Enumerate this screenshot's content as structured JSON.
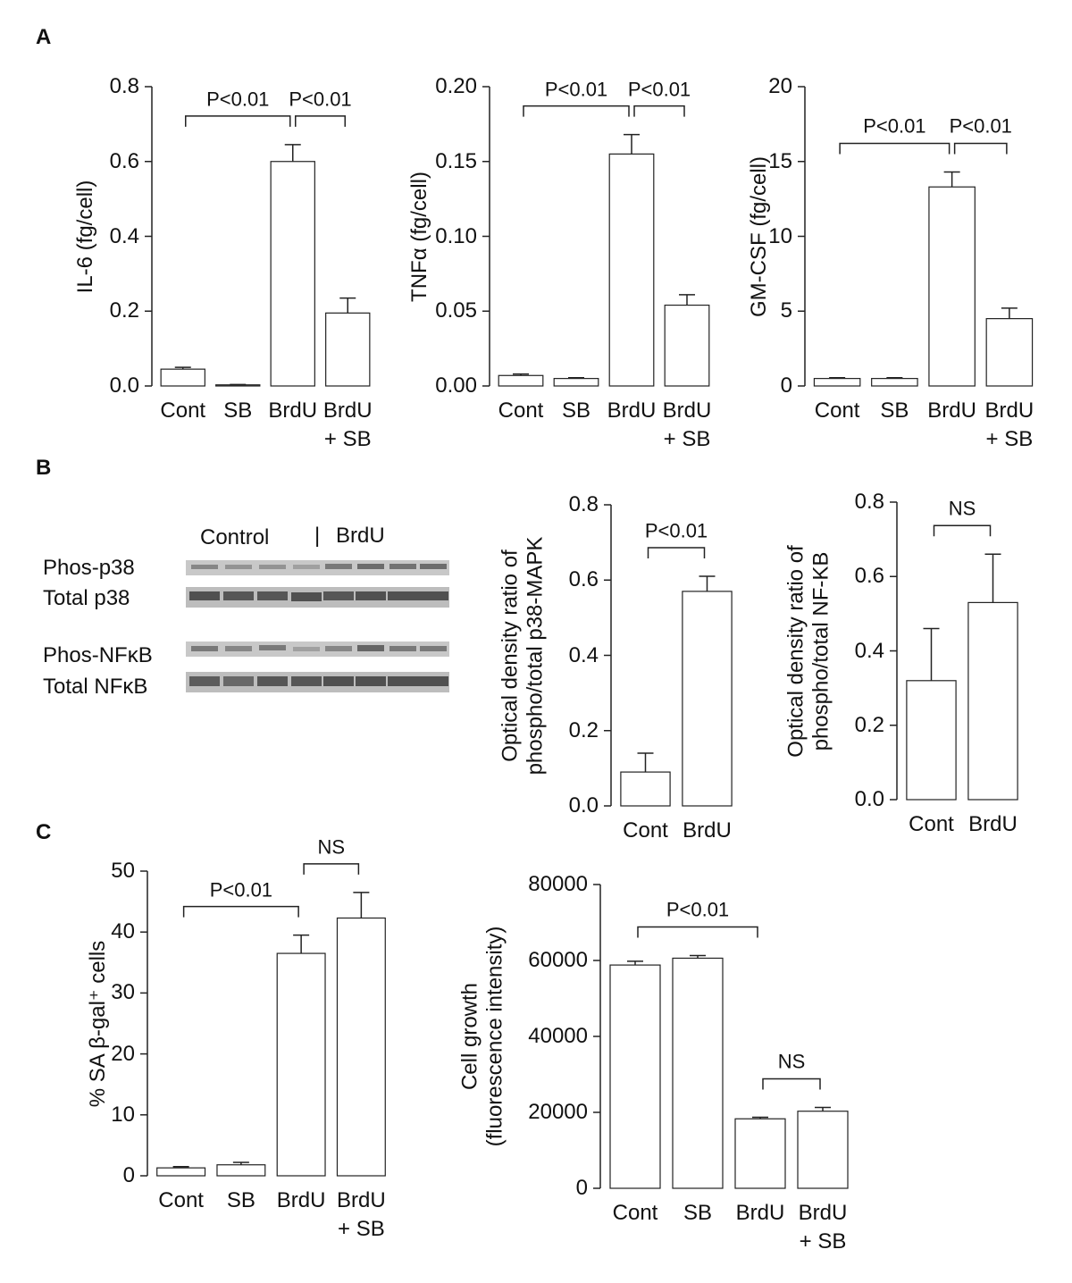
{
  "panels": [
    "A",
    "B",
    "C"
  ],
  "blot": {
    "groups": [
      "Control",
      "|",
      "BrdU"
    ],
    "rows": [
      "Phos-p38",
      "Total p38",
      "Phos-NFκB",
      "Total NFκB"
    ]
  },
  "chart_data": [
    {
      "type": "bar",
      "ylabel": "IL-6 (fg/cell)",
      "categories": [
        "Cont",
        "SB",
        "BrdU",
        "BrdU\n+ SB"
      ],
      "values": [
        0.045,
        0.003,
        0.6,
        0.195
      ],
      "errors": [
        0.005,
        0.001,
        0.045,
        0.04
      ],
      "ylim": [
        0,
        0.8
      ],
      "yticks": [
        {
          "value": 0,
          "label": "0.0"
        },
        0.2,
        0.4,
        0.6,
        0.8
      ],
      "annotations": [
        {
          "text": "P<0.01",
          "from": "Cont",
          "to": "BrdU"
        },
        {
          "text": "P<0.01",
          "from": "BrdU",
          "to": "BrdU\n+ SB"
        }
      ]
    },
    {
      "type": "bar",
      "ylabel": "TNFα (fg/cell)",
      "categories": [
        "Cont",
        "SB",
        "BrdU",
        "BrdU\n+ SB"
      ],
      "values": [
        0.007,
        0.005,
        0.155,
        0.054
      ],
      "errors": [
        0.001,
        0.0005,
        0.013,
        0.007
      ],
      "ylim": [
        0,
        0.2
      ],
      "yticks": [
        {
          "value": 0,
          "label": "0.00"
        },
        0.05,
        {
          "value": 0.1,
          "label": "0.10"
        },
        0.15,
        {
          "value": 0.2,
          "label": "0.20"
        }
      ],
      "annotations": [
        {
          "text": "P<0.01",
          "from": "Cont",
          "to": "BrdU"
        },
        {
          "text": "P<0.01",
          "from": "BrdU",
          "to": "BrdU\n+ SB"
        }
      ]
    },
    {
      "type": "bar",
      "ylabel": "GM-CSF (fg/cell)",
      "categories": [
        "Cont",
        "SB",
        "BrdU",
        "BrdU\n+ SB"
      ],
      "values": [
        0.5,
        0.5,
        13.3,
        4.5
      ],
      "errors": [
        0.05,
        0.05,
        1.0,
        0.7
      ],
      "ylim": [
        0,
        20
      ],
      "yticks": [
        0,
        5,
        10,
        15,
        20
      ],
      "annotations": [
        {
          "text": "P<0.01",
          "from": "Cont",
          "to": "BrdU"
        },
        {
          "text": "P<0.01",
          "from": "BrdU",
          "to": "BrdU\n+ SB"
        }
      ]
    },
    {
      "type": "bar",
      "ylabel": "Optical density ratio of\nphospho/total p38-MAPK",
      "categories": [
        "Cont",
        "BrdU"
      ],
      "values": [
        0.09,
        0.57
      ],
      "errors": [
        0.05,
        0.04
      ],
      "ylim": [
        0,
        0.8
      ],
      "yticks": [
        {
          "value": 0,
          "label": "0.0"
        },
        0.2,
        0.4,
        0.6,
        0.8
      ],
      "annotations": [
        {
          "text": "P<0.01",
          "from": "Cont",
          "to": "BrdU"
        }
      ]
    },
    {
      "type": "bar",
      "ylabel": "Optical density ratio of\nphospho/total NF-KB",
      "categories": [
        "Cont",
        "BrdU"
      ],
      "values": [
        0.32,
        0.53
      ],
      "errors": [
        0.14,
        0.13
      ],
      "ylim": [
        0,
        0.8
      ],
      "yticks": [
        {
          "value": 0,
          "label": "0.0"
        },
        0.2,
        0.4,
        0.6,
        0.8
      ],
      "annotations": [
        {
          "text": "NS",
          "from": "Cont",
          "to": "BrdU"
        }
      ]
    },
    {
      "type": "bar",
      "ylabel": "% SA β-gal⁺ cells",
      "categories": [
        "Cont",
        "SB",
        "BrdU",
        "BrdU\n+ SB"
      ],
      "values": [
        1.3,
        1.8,
        36.5,
        42.3
      ],
      "errors": [
        0.2,
        0.4,
        3,
        4.2
      ],
      "ylim": [
        0,
        50
      ],
      "yticks": [
        0,
        10,
        20,
        30,
        40,
        50
      ],
      "annotations": [
        {
          "text": "P<0.01",
          "from": "Cont",
          "to": "BrdU"
        },
        {
          "text": "NS",
          "from": "BrdU",
          "to": "BrdU\n+ SB"
        }
      ]
    },
    {
      "type": "bar",
      "ylabel": "Cell growth\n(fluorescence intensity)",
      "categories": [
        "Cont",
        "SB",
        "BrdU",
        "BrdU\n+ SB"
      ],
      "values": [
        58800,
        60600,
        18300,
        20300
      ],
      "errors": [
        1000,
        700,
        400,
        1000
      ],
      "ylim": [
        0,
        80000
      ],
      "yticks": [
        0,
        20000,
        40000,
        60000,
        80000
      ],
      "annotations": [
        {
          "text": "P<0.01",
          "from": "Cont",
          "to": "BrdU"
        },
        {
          "text": "NS",
          "from": "BrdU",
          "to": "BrdU\n+ SB"
        }
      ]
    }
  ]
}
